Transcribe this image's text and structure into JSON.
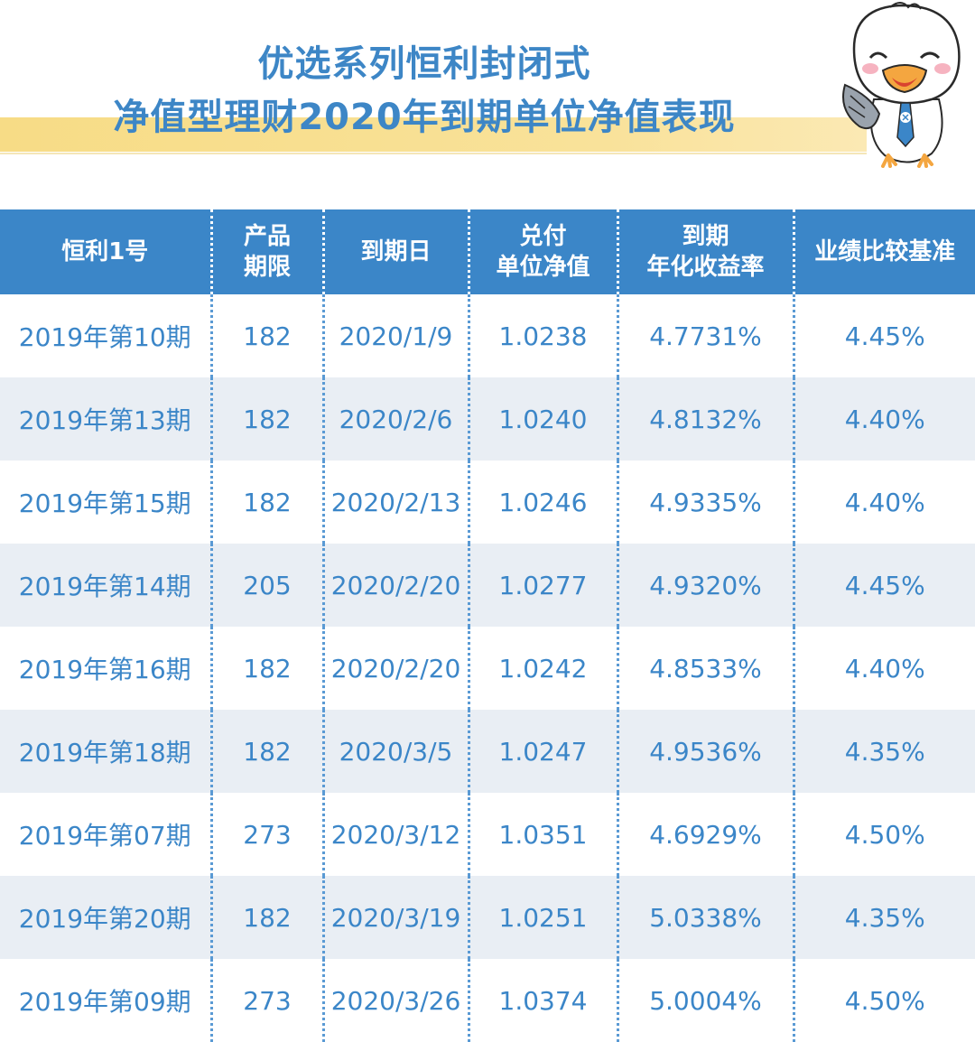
{
  "header": {
    "title_line1": "优选系列恒利封闭式",
    "title_line2": "净值型理财2020年到期单位净值表现"
  },
  "colors": {
    "accent": "#3b86c8",
    "band": "#f9e29a",
    "row_shade": "#e9eef4"
  },
  "mascot": {
    "icon": "seagull-mascot-icon"
  },
  "table": {
    "headers": [
      [
        "恒利1号"
      ],
      [
        "产品",
        "期限"
      ],
      [
        "到期日"
      ],
      [
        "兑付",
        "单位净值"
      ],
      [
        "到期",
        "年化收益率"
      ],
      [
        "业绩比较基准"
      ]
    ],
    "rows": [
      [
        "2019年第10期",
        "182",
        "2020/1/9",
        "1.0238",
        "4.7731%",
        "4.45%"
      ],
      [
        "2019年第13期",
        "182",
        "2020/2/6",
        "1.0240",
        "4.8132%",
        "4.40%"
      ],
      [
        "2019年第15期",
        "182",
        "2020/2/13",
        "1.0246",
        "4.9335%",
        "4.40%"
      ],
      [
        "2019年第14期",
        "205",
        "2020/2/20",
        "1.0277",
        "4.9320%",
        "4.45%"
      ],
      [
        "2019年第16期",
        "182",
        "2020/2/20",
        "1.0242",
        "4.8533%",
        "4.40%"
      ],
      [
        "2019年第18期",
        "182",
        "2020/3/5",
        "1.0247",
        "4.9536%",
        "4.35%"
      ],
      [
        "2019年第07期",
        "273",
        "2020/3/12",
        "1.0351",
        "4.6929%",
        "4.50%"
      ],
      [
        "2019年第20期",
        "182",
        "2020/3/19",
        "1.0251",
        "5.0338%",
        "4.35%"
      ],
      [
        "2019年第09期",
        "273",
        "2020/3/26",
        "1.0374",
        "5.0004%",
        "4.50%"
      ]
    ]
  }
}
